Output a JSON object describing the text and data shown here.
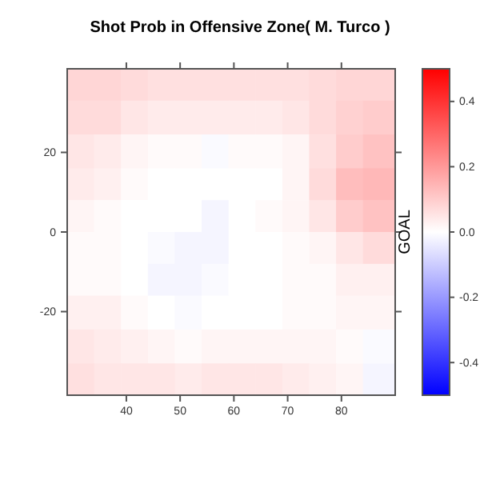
{
  "chart_data": {
    "type": "heatmap",
    "title": "Shot Prob in Offensive Zone( M. Turco )",
    "clabel": "GOAL",
    "x": [
      31.5,
      36.5,
      41.5,
      46.5,
      51.5,
      56.5,
      61.5,
      66.5,
      71.5,
      76.5,
      81.5,
      86.5
    ],
    "y": [
      37,
      29,
      20,
      12,
      4,
      -4,
      -12,
      -20,
      -29,
      -37
    ],
    "xlim": [
      29,
      90
    ],
    "xticks": [
      40,
      50,
      60,
      70,
      80
    ],
    "ylim": [
      -41,
      41
    ],
    "yticks": [
      -20,
      0,
      20
    ],
    "clim": [
      -0.5,
      0.5
    ],
    "cticks": [
      {
        "value": -0.4,
        "label": "-0.4"
      },
      {
        "value": -0.2,
        "label": "-0.2"
      },
      {
        "value": 0,
        "label": "0.0"
      },
      {
        "value": 0.2,
        "label": "0.2"
      },
      {
        "value": 0.4,
        "label": "0.4"
      }
    ],
    "cells": [
      [
        0.08,
        0.08,
        0.07,
        0.06,
        0.06,
        0.06,
        0.06,
        0.06,
        0.06,
        0.07,
        0.08,
        0.08
      ],
      [
        0.07,
        0.07,
        0.05,
        0.04,
        0.04,
        0.04,
        0.04,
        0.04,
        0.05,
        0.07,
        0.09,
        0.1
      ],
      [
        0.05,
        0.04,
        0.02,
        0.01,
        0.01,
        -0.01,
        0.01,
        0.01,
        0.02,
        0.06,
        0.1,
        0.12
      ],
      [
        0.04,
        0.03,
        0.01,
        0.0,
        0.0,
        0.0,
        0.0,
        0.0,
        0.02,
        0.07,
        0.13,
        0.14
      ],
      [
        0.02,
        0.01,
        0.0,
        0.0,
        0.0,
        -0.02,
        0.0,
        0.01,
        0.02,
        0.05,
        0.1,
        0.12
      ],
      [
        0.01,
        0.01,
        0.0,
        -0.01,
        -0.02,
        -0.02,
        0.0,
        0.0,
        0.01,
        0.02,
        0.05,
        0.07
      ],
      [
        0.01,
        0.01,
        0.0,
        -0.02,
        -0.02,
        -0.01,
        0.0,
        0.0,
        0.01,
        0.01,
        0.03,
        0.03
      ],
      [
        0.03,
        0.03,
        0.01,
        0.0,
        -0.01,
        0.0,
        0.0,
        0.0,
        0.01,
        0.01,
        0.02,
        0.02
      ],
      [
        0.05,
        0.04,
        0.03,
        0.02,
        0.01,
        0.02,
        0.02,
        0.02,
        0.02,
        0.02,
        0.01,
        -0.01
      ],
      [
        0.06,
        0.05,
        0.05,
        0.05,
        0.04,
        0.05,
        0.05,
        0.05,
        0.04,
        0.03,
        0.02,
        -0.02
      ]
    ]
  }
}
